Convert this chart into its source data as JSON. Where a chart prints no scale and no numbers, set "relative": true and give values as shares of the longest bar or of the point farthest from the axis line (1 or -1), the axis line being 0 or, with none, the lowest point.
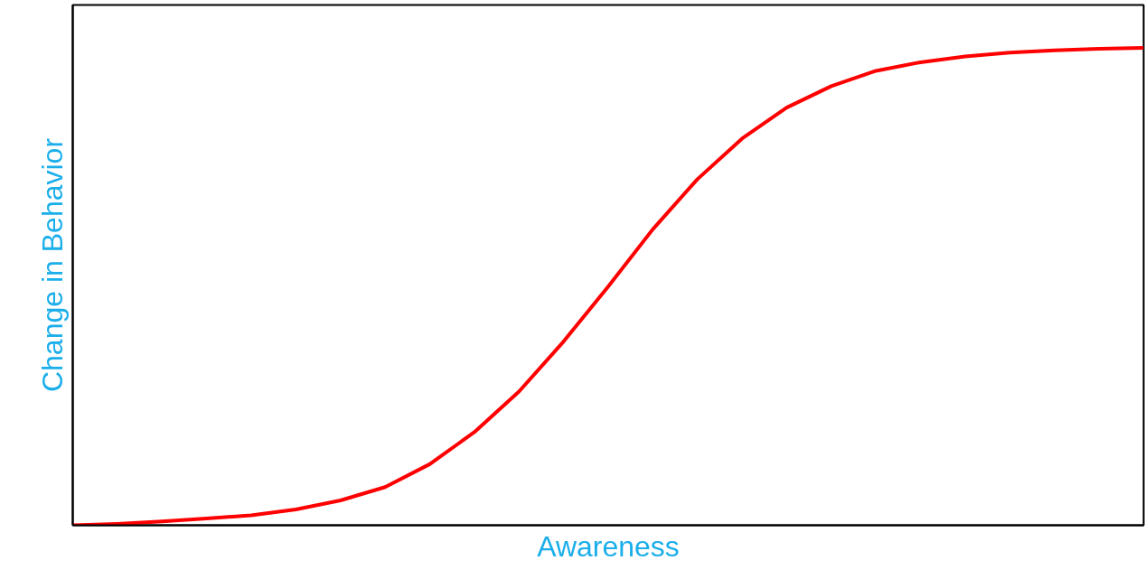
{
  "chart_data": {
    "type": "line",
    "relative": true,
    "xlabel": "Awareness",
    "ylabel": "Change in Behavior",
    "categories": [
      null,
      null,
      null,
      null,
      null,
      null,
      null,
      null,
      null,
      null,
      null,
      null,
      null,
      null,
      null,
      null,
      null,
      null,
      null,
      null,
      null,
      null,
      null,
      null,
      null
    ],
    "series": [
      {
        "color": "#ff0000",
        "values": [
          0,
          0.003,
          0.008,
          0.014,
          0.021,
          0.033,
          0.052,
          0.08,
          0.128,
          0.195,
          0.28,
          0.385,
          0.5,
          0.62,
          0.725,
          0.81,
          0.875,
          0.92,
          0.952,
          0.97,
          0.982,
          0.99,
          0.995,
          0.998,
          1
        ]
      }
    ],
    "marker": "none",
    "line_style": "solid"
  }
}
